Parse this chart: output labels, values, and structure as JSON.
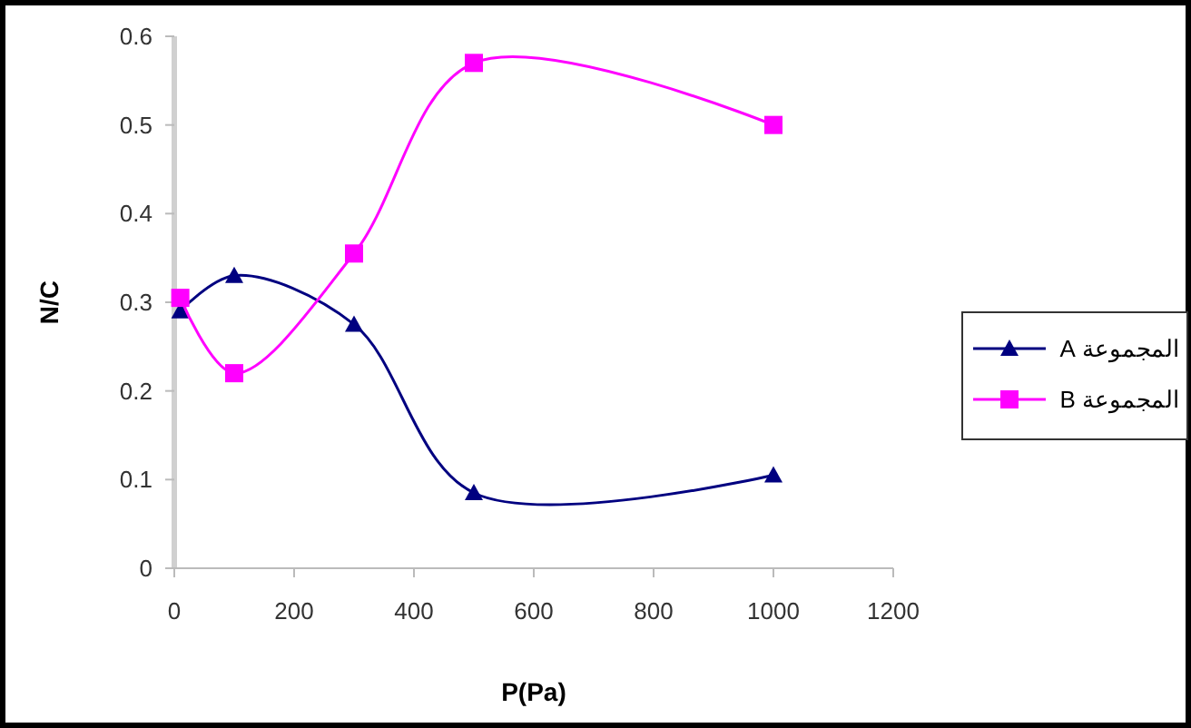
{
  "chart_data": {
    "type": "line",
    "xlabel": "P(Pa)",
    "ylabel": "N/C",
    "x": [
      10,
      100,
      300,
      500,
      1000
    ],
    "series": [
      {
        "name": "المجموعة A",
        "color": "#000080",
        "values": [
          0.29,
          0.33,
          0.275,
          0.085,
          0.105
        ],
        "marker": "triangle"
      },
      {
        "name": "المجموعة B",
        "color": "#ff00ff",
        "values": [
          0.305,
          0.22,
          0.355,
          0.57,
          0.5
        ],
        "marker": "square"
      }
    ],
    "xlim": [
      0,
      1200
    ],
    "xticks": [
      0,
      200,
      400,
      600,
      800,
      1000,
      1200
    ],
    "ylim": [
      0,
      0.6
    ],
    "yticks": [
      0,
      0.1,
      0.2,
      0.3,
      0.4,
      0.5,
      0.6
    ],
    "grid": false,
    "legend": "right"
  }
}
